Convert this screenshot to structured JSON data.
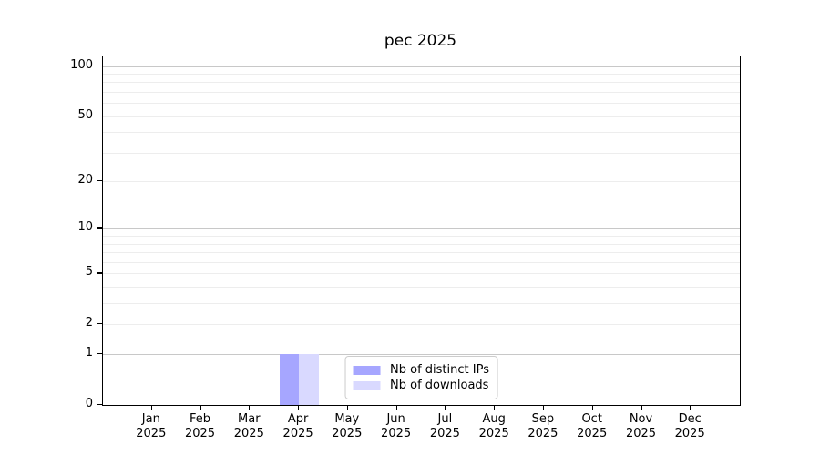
{
  "title": "pec 2025",
  "chart_data": {
    "type": "bar",
    "title": "pec 2025",
    "categories": [
      "Jan 2025",
      "Feb 2025",
      "Mar 2025",
      "Apr 2025",
      "May 2025",
      "Jun 2025",
      "Jul 2025",
      "Aug 2025",
      "Sep 2025",
      "Oct 2025",
      "Nov 2025",
      "Dec 2025"
    ],
    "series": [
      {
        "name": "Nb of distinct IPs",
        "color": "#a6a6ff",
        "values": [
          0,
          0,
          0,
          1,
          0,
          0,
          0,
          0,
          0,
          0,
          0,
          0
        ]
      },
      {
        "name": "Nb of downloads",
        "color": "#d9d9ff",
        "values": [
          0,
          0,
          0,
          1,
          0,
          0,
          0,
          0,
          0,
          0,
          0,
          0
        ]
      }
    ],
    "xlabel": "",
    "ylabel": "",
    "y_axis": {
      "scale": "log1p",
      "tick_labels": [
        "0",
        "1",
        "2",
        "5",
        "10",
        "20",
        "50",
        "100"
      ],
      "ticks": [
        0,
        1,
        2,
        5,
        10,
        20,
        50,
        100
      ],
      "major_grid_values": [
        1,
        10,
        100
      ],
      "minor_grid_values": [
        2,
        3,
        4,
        5,
        6,
        7,
        8,
        9,
        20,
        30,
        40,
        50,
        60,
        70,
        80,
        90
      ],
      "top_value": 114
    },
    "legend": {
      "position": "lower center"
    },
    "grid": "horizontal",
    "colors": {
      "major_grid": "#c8c8c8",
      "minor_grid": "#ededed",
      "spine": "#000000",
      "background": "#ffffff"
    }
  }
}
